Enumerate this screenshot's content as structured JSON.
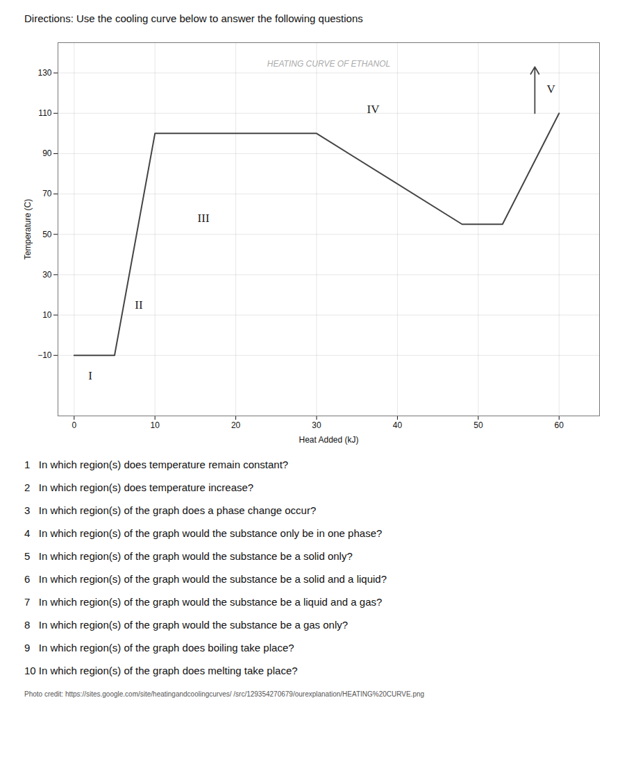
{
  "chart_data": {
    "type": "line",
    "title": "Directions: Use the cooling curve below to answer the following questions",
    "subtitle": "HEATING CURVE OF ETHANOL",
    "x_label": "Heat Added (kJ)",
    "y_label": "Temperature (C)",
    "x": [
      0,
      5,
      10,
      30,
      48,
      53,
      60
    ],
    "values": [
      -10,
      -10,
      100,
      100,
      55,
      55,
      110
    ],
    "color": "#444444",
    "xlim": [
      -2,
      65
    ],
    "ylim": [
      -40,
      145
    ],
    "xticks": [
      0,
      10,
      20,
      30,
      40,
      50,
      60
    ],
    "yticks": [
      -10,
      10,
      30,
      50,
      70,
      90,
      110,
      130
    ],
    "grid": true,
    "annotations": [
      {
        "text": "I",
        "x": 2.0,
        "y": -20
      },
      {
        "text": "II",
        "x": 8.0,
        "y": 15
      },
      {
        "text": "III",
        "x": 16.0,
        "y": 58
      },
      {
        "text": "IV",
        "x": 37.0,
        "y": 112
      },
      {
        "text": "V",
        "x": 59.0,
        "y": 122
      }
    ],
    "arrows": [
      {
        "x": 57,
        "y_start": 110,
        "y_end": 133
      }
    ],
    "questions": [
      "1   In which region(s) does temperature remain constant?",
      "2   In which region(s) does temperature increase?",
      "3   In which region(s) of the graph does a phase change occur?",
      "4   In which region(s) of the graph would the substance only be in one phase?",
      "5   In which region(s) of the graph would the substance be a solid only?",
      "6   In which region(s) of the graph would the substance be a solid and a liquid?",
      "7   In which region(s) of the graph would the substance be a liquid and a gas?",
      "8   In which region(s) of the graph would the substance be a gas only?",
      "9   In which region(s) of the graph does boiling take place?",
      "10 In which region(s) of the graph does melting take place?"
    ],
    "caption": "Photo credit: https://sites.google.com/site/heatingandcoolingcurves/ /src/129354270679/ourexplanation/HEATING%20CURVE.png"
  }
}
